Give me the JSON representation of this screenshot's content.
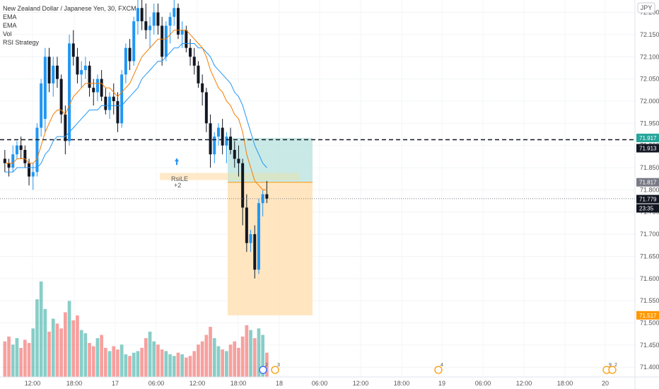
{
  "legend": {
    "symbol": "New Zealand Dollar / Japanese Yen, 30, FXCM",
    "ema1": "EMA",
    "ema2": "EMA",
    "vol": "Vol",
    "strategy": "RSI Strategy"
  },
  "currency_badge": "JPY",
  "signal": {
    "label": "RsiLE",
    "qty": "+2"
  },
  "events": [
    {
      "count": "2",
      "time": "22:00"
    },
    {
      "count": "3",
      "time": "23:30"
    },
    {
      "count": "4",
      "time": "19 00:00"
    },
    {
      "count": "9",
      "time": "20 00:00"
    },
    {
      "count": "2",
      "time": "20 00:30"
    }
  ],
  "colors": {
    "up": "#2196f3",
    "down": "#131722",
    "ema_fast": "#f57c00",
    "ema_slow": "#2196f3",
    "vol_up": "#26a69a",
    "vol_down": "#ef5350",
    "target_zone": "#b2dfdb",
    "stop_zone": "#ffe0b2",
    "entry_line": "#ff9800"
  },
  "price_tags": [
    {
      "value": "71.917",
      "bg": "#26a69a"
    },
    {
      "value": "71.913",
      "bg": "#131722"
    },
    {
      "value": "71.817",
      "bg": "#787b86"
    },
    {
      "value": "71.779",
      "bg": "#131722"
    },
    {
      "value": "23:35",
      "bg": "#131722"
    },
    {
      "value": "71.517",
      "bg": "#ff9800"
    }
  ],
  "chart_data": {
    "type": "candlestick",
    "y_ticks": [
      "71.400",
      "71.450",
      "71.500",
      "71.550",
      "71.600",
      "71.650",
      "71.700",
      "71.750",
      "71.800",
      "71.850",
      "71.900",
      "71.950",
      "72.000",
      "72.050",
      "72.100",
      "72.150",
      "72.200"
    ],
    "x_ticks": [
      "12:00",
      "18:00",
      "17",
      "06:00",
      "12:00",
      "18:00",
      "18",
      "06:00",
      "12:00",
      "18:00",
      "19",
      "06:00",
      "12:00",
      "18:00",
      "20"
    ],
    "ylim": [
      71.378,
      72.228
    ],
    "horizontal_line": 71.913,
    "position": {
      "entry": 71.817,
      "target": 71.917,
      "stop": 71.517
    },
    "ohlc": [
      [
        71.87,
        71.89,
        71.84,
        71.86
      ],
      [
        71.86,
        71.87,
        71.83,
        71.85
      ],
      [
        71.85,
        71.9,
        71.84,
        71.88
      ],
      [
        71.88,
        71.91,
        71.87,
        71.9
      ],
      [
        71.9,
        71.92,
        71.87,
        71.89
      ],
      [
        71.89,
        71.9,
        71.85,
        71.86
      ],
      [
        71.86,
        71.87,
        71.81,
        71.83
      ],
      [
        71.83,
        71.86,
        71.8,
        71.84
      ],
      [
        71.84,
        71.95,
        71.83,
        71.94
      ],
      [
        71.94,
        72.05,
        71.92,
        72.04
      ],
      [
        71.96,
        72.12,
        71.93,
        72.1
      ],
      [
        72.1,
        72.12,
        72.02,
        72.04
      ],
      [
        72.04,
        72.1,
        72.01,
        72.08
      ],
      [
        72.08,
        72.1,
        72.03,
        72.05
      ],
      [
        72.05,
        72.06,
        71.95,
        71.97
      ],
      [
        71.97,
        71.99,
        71.88,
        71.91
      ],
      [
        71.91,
        72.15,
        71.9,
        72.13
      ],
      [
        72.13,
        72.16,
        72.08,
        72.1
      ],
      [
        72.1,
        72.12,
        72.04,
        72.06
      ],
      [
        72.06,
        72.09,
        72.03,
        72.07
      ],
      [
        72.07,
        72.1,
        72.05,
        72.08
      ],
      [
        72.08,
        72.09,
        72.01,
        72.03
      ],
      [
        72.03,
        72.05,
        71.99,
        72.02
      ],
      [
        72.02,
        72.06,
        72.0,
        72.05
      ],
      [
        72.05,
        72.07,
        72.0,
        72.01
      ],
      [
        72.01,
        72.03,
        71.97,
        71.98
      ],
      [
        71.98,
        72.02,
        71.96,
        72.01
      ],
      [
        72.01,
        72.04,
        71.97,
        72.0
      ],
      [
        72.0,
        72.02,
        71.93,
        71.95
      ],
      [
        71.95,
        72.07,
        71.94,
        72.06
      ],
      [
        72.06,
        72.13,
        72.04,
        72.12
      ],
      [
        72.12,
        72.14,
        72.07,
        72.09
      ],
      [
        72.09,
        72.19,
        72.08,
        72.18
      ],
      [
        72.18,
        72.23,
        72.15,
        72.21
      ],
      [
        72.21,
        72.23,
        72.16,
        72.18
      ],
      [
        72.18,
        72.22,
        72.14,
        72.16
      ],
      [
        72.16,
        72.19,
        72.12,
        72.17
      ],
      [
        72.17,
        72.22,
        72.15,
        72.2
      ],
      [
        72.2,
        72.22,
        72.15,
        72.17
      ],
      [
        72.17,
        72.19,
        72.08,
        72.1
      ],
      [
        72.1,
        72.18,
        72.09,
        72.17
      ],
      [
        72.17,
        72.2,
        72.13,
        72.19
      ],
      [
        72.19,
        72.23,
        72.17,
        72.21
      ],
      [
        72.21,
        72.22,
        72.14,
        72.15
      ],
      [
        72.15,
        72.18,
        72.12,
        72.16
      ],
      [
        72.16,
        72.17,
        72.11,
        72.12
      ],
      [
        72.12,
        72.14,
        72.08,
        72.1
      ],
      [
        72.1,
        72.12,
        72.06,
        72.08
      ],
      [
        72.08,
        72.09,
        72.03,
        72.04
      ],
      [
        72.04,
        72.06,
        71.99,
        72.02
      ],
      [
        72.02,
        72.03,
        71.93,
        71.95
      ],
      [
        71.95,
        71.97,
        71.85,
        71.88
      ],
      [
        71.88,
        71.93,
        71.86,
        71.92
      ],
      [
        71.92,
        71.95,
        71.9,
        71.94
      ],
      [
        71.94,
        71.96,
        71.88,
        71.9
      ],
      [
        71.9,
        71.93,
        71.86,
        71.92
      ],
      [
        71.92,
        71.94,
        71.88,
        71.89
      ],
      [
        71.89,
        71.91,
        71.85,
        71.87
      ],
      [
        71.87,
        71.9,
        71.83,
        71.86
      ],
      [
        71.86,
        71.87,
        71.72,
        71.76
      ],
      [
        71.76,
        71.79,
        71.66,
        71.68
      ],
      [
        71.68,
        71.71,
        71.66,
        71.7
      ],
      [
        71.7,
        71.72,
        71.6,
        71.62
      ],
      [
        71.62,
        71.78,
        71.61,
        71.77
      ],
      [
        71.77,
        71.8,
        71.74,
        71.79
      ],
      [
        71.79,
        71.82,
        71.77,
        71.78
      ]
    ],
    "ema_fast": [
      71.86,
      71.86,
      71.86,
      71.87,
      71.87,
      71.87,
      71.86,
      71.86,
      71.87,
      71.9,
      71.93,
      71.95,
      71.97,
      71.98,
      71.98,
      71.97,
      71.99,
      72.01,
      72.02,
      72.03,
      72.04,
      72.04,
      72.04,
      72.04,
      72.04,
      72.03,
      72.03,
      72.02,
      72.01,
      72.02,
      72.03,
      72.04,
      72.06,
      72.08,
      72.1,
      72.11,
      72.12,
      72.13,
      72.14,
      72.14,
      72.14,
      72.15,
      72.16,
      72.16,
      72.16,
      72.16,
      72.15,
      72.14,
      72.13,
      72.12,
      72.1,
      72.07,
      72.05,
      72.03,
      72.02,
      72.0,
      71.99,
      71.97,
      71.96,
      71.93,
      71.88,
      71.85,
      71.82,
      71.81,
      71.8,
      71.8
    ],
    "ema_slow": [
      71.84,
      71.84,
      71.84,
      71.85,
      71.85,
      71.85,
      71.85,
      71.85,
      71.85,
      71.86,
      71.88,
      71.89,
      71.91,
      71.92,
      71.92,
      71.92,
      71.93,
      71.94,
      71.95,
      71.96,
      71.97,
      71.98,
      71.98,
      71.98,
      71.99,
      71.99,
      71.99,
      71.99,
      71.99,
      71.99,
      72.0,
      72.01,
      72.02,
      72.03,
      72.05,
      72.06,
      72.07,
      72.08,
      72.09,
      72.09,
      72.1,
      72.11,
      72.12,
      72.12,
      72.13,
      72.13,
      72.13,
      72.13,
      72.12,
      72.12,
      72.11,
      72.1,
      72.08,
      72.07,
      72.06,
      72.05,
      72.04,
      72.02,
      72.01,
      71.99,
      71.96,
      71.93,
      71.9,
      71.88,
      71.86,
      71.85
    ],
    "volume": [
      22,
      25,
      20,
      24,
      18,
      23,
      21,
      30,
      48,
      59,
      42,
      28,
      36,
      33,
      30,
      40,
      47,
      35,
      38,
      29,
      27,
      21,
      19,
      24,
      26,
      18,
      16,
      19,
      17,
      20,
      14,
      13,
      15,
      16,
      18,
      24,
      28,
      22,
      20,
      17,
      16,
      14,
      13,
      15,
      14,
      12,
      13,
      16,
      20,
      22,
      26,
      31,
      24,
      19,
      17,
      16,
      20,
      22,
      18,
      25,
      32,
      29,
      24,
      30,
      26,
      15
    ]
  }
}
